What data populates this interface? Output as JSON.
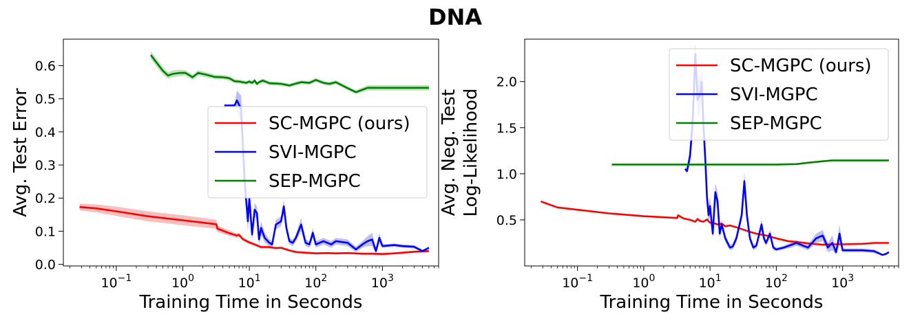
{
  "figure": {
    "title": "DNA"
  },
  "chart_data": [
    {
      "type": "line",
      "xscale": "log",
      "xlim": [
        0.016,
        7000
      ],
      "ylim": [
        -0.005,
        0.68
      ],
      "xlabel": "Training Time in Seconds",
      "ylabel": "Avg. Test Error",
      "xticks": [
        {
          "value": 0.1,
          "base": "10",
          "exp": "−1"
        },
        {
          "value": 1,
          "base": "10",
          "exp": "0"
        },
        {
          "value": 10,
          "base": "10",
          "exp": "1"
        },
        {
          "value": 100,
          "base": "10",
          "exp": "2"
        },
        {
          "value": 1000,
          "base": "10",
          "exp": "3"
        }
      ],
      "yticks": [
        {
          "value": 0.0,
          "label": "0.0"
        },
        {
          "value": 0.1,
          "label": "0.1"
        },
        {
          "value": 0.2,
          "label": "0.2"
        },
        {
          "value": 0.3,
          "label": "0.3"
        },
        {
          "value": 0.4,
          "label": "0.4"
        },
        {
          "value": 0.5,
          "label": "0.5"
        },
        {
          "value": 0.6,
          "label": "0.6"
        }
      ],
      "legend": {
        "position": "center-right",
        "entries": [
          "SC-MGPC (ours)",
          "SVI-MGPC",
          "SEP-MGPC"
        ]
      },
      "series": [
        {
          "name": "SC-MGPC (ours)",
          "color": "#ff0000",
          "band_color": "#f4a8a8",
          "x": [
            0.028,
            0.05,
            0.1,
            0.3,
            1,
            3.2,
            3.3,
            5,
            6.5,
            7,
            8,
            10,
            12,
            15,
            20,
            25,
            30,
            40,
            50,
            70,
            100,
            150,
            200,
            300,
            500,
            700,
            1000,
            1500,
            2000,
            3000,
            5000
          ],
          "y": [
            0.173,
            0.169,
            0.16,
            0.145,
            0.133,
            0.121,
            0.108,
            0.094,
            0.087,
            0.089,
            0.076,
            0.066,
            0.06,
            0.052,
            0.052,
            0.049,
            0.05,
            0.042,
            0.037,
            0.035,
            0.033,
            0.034,
            0.033,
            0.034,
            0.032,
            0.032,
            0.031,
            0.033,
            0.035,
            0.038,
            0.04
          ],
          "band": [
            0.01,
            0.012,
            0.014,
            0.015,
            0.015,
            0.014,
            0.01,
            0.008,
            0.006,
            0.006,
            0.005,
            0.005,
            0.004,
            0.004,
            0.004,
            0.004,
            0.003,
            0.003,
            0.003,
            0.003,
            0.003,
            0.003,
            0.003,
            0.003,
            0.003,
            0.003,
            0.003,
            0.003,
            0.003,
            0.003,
            0.003
          ]
        },
        {
          "name": "SVI-MGPC",
          "color": "#0000ff",
          "band_color": "#a8a8f4",
          "x": [
            4.2,
            5,
            6,
            6.5,
            7.5,
            8.5,
            9.5,
            10,
            11,
            12,
            13,
            14,
            15,
            17,
            20,
            22,
            25,
            30,
            33,
            36,
            40,
            45,
            50,
            60,
            70,
            80,
            90,
            100,
            130,
            170,
            200,
            300,
            400,
            500,
            600,
            700,
            800,
            900,
            1000,
            1500,
            2000,
            3000,
            4000,
            4500,
            5000
          ],
          "y": [
            0.48,
            0.48,
            0.48,
            0.495,
            0.47,
            0.25,
            0.13,
            0.2,
            0.09,
            0.165,
            0.155,
            0.075,
            0.11,
            0.08,
            0.065,
            0.06,
            0.12,
            0.13,
            0.175,
            0.11,
            0.07,
            0.065,
            0.08,
            0.12,
            0.065,
            0.06,
            0.095,
            0.06,
            0.07,
            0.06,
            0.07,
            0.065,
            0.045,
            0.06,
            0.07,
            0.075,
            0.04,
            0.08,
            0.055,
            0.058,
            0.055,
            0.053,
            0.04,
            0.045,
            0.05
          ],
          "band": [
            0.0,
            0.0,
            0.005,
            0.03,
            0.04,
            0.04,
            0.03,
            0.03,
            0.02,
            0.02,
            0.02,
            0.015,
            0.02,
            0.015,
            0.01,
            0.01,
            0.015,
            0.015,
            0.02,
            0.015,
            0.01,
            0.01,
            0.01,
            0.02,
            0.01,
            0.01,
            0.015,
            0.01,
            0.01,
            0.01,
            0.01,
            0.01,
            0.008,
            0.01,
            0.015,
            0.02,
            0.008,
            0.015,
            0.005,
            0.005,
            0.005,
            0.005,
            0.004,
            0.004,
            0.004
          ]
        },
        {
          "name": "SEP-MGPC",
          "color": "#008000",
          "band_color": "#a8d8a8",
          "x": [
            0.33,
            0.4,
            0.5,
            0.6,
            0.7,
            0.9,
            1.1,
            1.4,
            1.7,
            2.2,
            3,
            4,
            5,
            6,
            7,
            8,
            9,
            10,
            11,
            12,
            13,
            14,
            16,
            20,
            25,
            30,
            40,
            50,
            60,
            80,
            100,
            130,
            160,
            200,
            250,
            300,
            400,
            600,
            1000,
            2000,
            5000
          ],
          "y": [
            0.632,
            0.61,
            0.585,
            0.57,
            0.575,
            0.578,
            0.578,
            0.565,
            0.578,
            0.573,
            0.566,
            0.565,
            0.562,
            0.553,
            0.552,
            0.55,
            0.548,
            0.552,
            0.548,
            0.555,
            0.545,
            0.55,
            0.555,
            0.547,
            0.546,
            0.545,
            0.54,
            0.546,
            0.55,
            0.548,
            0.557,
            0.548,
            0.545,
            0.55,
            0.54,
            0.532,
            0.52,
            0.533,
            0.533,
            0.533,
            0.533
          ],
          "band": [
            0.012,
            0.012,
            0.012,
            0.01,
            0.01,
            0.01,
            0.008,
            0.008,
            0.008,
            0.008,
            0.007,
            0.007,
            0.007,
            0.006,
            0.006,
            0.006,
            0.006,
            0.006,
            0.006,
            0.006,
            0.006,
            0.006,
            0.006,
            0.006,
            0.006,
            0.006,
            0.006,
            0.006,
            0.006,
            0.006,
            0.006,
            0.006,
            0.006,
            0.006,
            0.006,
            0.006,
            0.006,
            0.008,
            0.008,
            0.008,
            0.008
          ]
        }
      ]
    },
    {
      "type": "line",
      "xscale": "log",
      "xlim": [
        0.016,
        7000
      ],
      "ylim": [
        0.0,
        2.46
      ],
      "xlabel": "Training Time in Seconds",
      "ylabel": "Avg. Neg. Test Log-Likelihood",
      "ylabel_lines": [
        "Avg. Neg. Test",
        "Log-Likelihood"
      ],
      "xticks": [
        {
          "value": 0.1,
          "base": "10",
          "exp": "−1"
        },
        {
          "value": 1,
          "base": "10",
          "exp": "0"
        },
        {
          "value": 10,
          "base": "10",
          "exp": "1"
        },
        {
          "value": 100,
          "base": "10",
          "exp": "2"
        },
        {
          "value": 1000,
          "base": "10",
          "exp": "3"
        }
      ],
      "yticks": [
        {
          "value": 0.5,
          "label": "0.5"
        },
        {
          "value": 1.0,
          "label": "1.0"
        },
        {
          "value": 1.5,
          "label": "1.5"
        },
        {
          "value": 2.0,
          "label": "2.0"
        }
      ],
      "legend": {
        "position": "top-right",
        "entries": [
          "SC-MGPC (ours)",
          "SVI-MGPC",
          "SEP-MGPC"
        ]
      },
      "series": [
        {
          "name": "SC-MGPC (ours)",
          "color": "#ff0000",
          "band_color": "#f4a8a8",
          "x": [
            0.028,
            0.05,
            0.1,
            0.3,
            1,
            3.2,
            3.3,
            4,
            5,
            6,
            6.5,
            7,
            8,
            9,
            10,
            11,
            13,
            15,
            17,
            20,
            25,
            30,
            40,
            50,
            70,
            100,
            150,
            200,
            300,
            500,
            700,
            1000,
            2000,
            3000,
            5000
          ],
          "y": [
            0.7,
            0.635,
            0.61,
            0.57,
            0.54,
            0.52,
            0.55,
            0.515,
            0.5,
            0.48,
            0.51,
            0.49,
            0.48,
            0.505,
            0.47,
            0.47,
            0.45,
            0.46,
            0.43,
            0.44,
            0.42,
            0.4,
            0.37,
            0.35,
            0.33,
            0.3,
            0.27,
            0.26,
            0.245,
            0.23,
            0.235,
            0.235,
            0.24,
            0.25,
            0.25
          ],
          "band": [
            0.008,
            0.008,
            0.008,
            0.008,
            0.008,
            0.008,
            0.008,
            0.008,
            0.008,
            0.008,
            0.008,
            0.008,
            0.008,
            0.008,
            0.008,
            0.008,
            0.008,
            0.008,
            0.008,
            0.008,
            0.008,
            0.008,
            0.008,
            0.008,
            0.008,
            0.008,
            0.008,
            0.008,
            0.008,
            0.008,
            0.008,
            0.008,
            0.008,
            0.008,
            0.008
          ]
        },
        {
          "name": "SVI-MGPC",
          "color": "#0000ff",
          "band_color": "#a8a8f4",
          "x": [
            4.2,
            4.5,
            5,
            5.5,
            6,
            6.5,
            7,
            7.5,
            8,
            8.5,
            9,
            9.5,
            10,
            11,
            12,
            13,
            14,
            15,
            17,
            20,
            22,
            25,
            30,
            33,
            36,
            40,
            45,
            50,
            60,
            65,
            70,
            80,
            90,
            100,
            130,
            170,
            200,
            300,
            400,
            500,
            600,
            700,
            800,
            900,
            1000,
            1500,
            2000,
            3000,
            4000,
            4500,
            5000
          ],
          "y": [
            1.05,
            1.03,
            1.2,
            1.6,
            2.3,
            1.8,
            1.85,
            2.0,
            1.5,
            1.15,
            0.75,
            0.55,
            0.65,
            0.35,
            0.8,
            0.7,
            0.35,
            0.45,
            0.3,
            0.2,
            0.21,
            0.3,
            0.55,
            0.92,
            0.55,
            0.3,
            0.2,
            0.22,
            0.45,
            0.3,
            0.25,
            0.35,
            0.2,
            0.18,
            0.2,
            0.23,
            0.25,
            0.2,
            0.3,
            0.33,
            0.2,
            0.25,
            0.15,
            0.35,
            0.17,
            0.17,
            0.17,
            0.16,
            0.12,
            0.13,
            0.15
          ],
          "band": [
            0.02,
            0.03,
            0.1,
            0.2,
            0.1,
            0.2,
            0.2,
            0.2,
            0.2,
            0.15,
            0.12,
            0.1,
            0.1,
            0.05,
            0.1,
            0.1,
            0.05,
            0.05,
            0.04,
            0.03,
            0.03,
            0.04,
            0.06,
            0.1,
            0.06,
            0.04,
            0.03,
            0.03,
            0.06,
            0.04,
            0.03,
            0.04,
            0.03,
            0.02,
            0.02,
            0.03,
            0.03,
            0.03,
            0.05,
            0.06,
            0.05,
            0.08,
            0.03,
            0.1,
            0.02,
            0.02,
            0.02,
            0.02,
            0.01,
            0.01,
            0.01
          ]
        },
        {
          "name": "SEP-MGPC",
          "color": "#008000",
          "band_color": "#a8d8a8",
          "x": [
            0.33,
            1,
            10,
            100,
            200,
            300,
            500,
            700,
            1000,
            2000,
            5000
          ],
          "y": [
            1.1,
            1.1,
            1.1,
            1.1,
            1.105,
            1.12,
            1.135,
            1.145,
            1.145,
            1.145,
            1.145
          ],
          "band": [
            0.004,
            0.004,
            0.004,
            0.004,
            0.004,
            0.004,
            0.004,
            0.004,
            0.004,
            0.004,
            0.004
          ]
        }
      ]
    }
  ]
}
